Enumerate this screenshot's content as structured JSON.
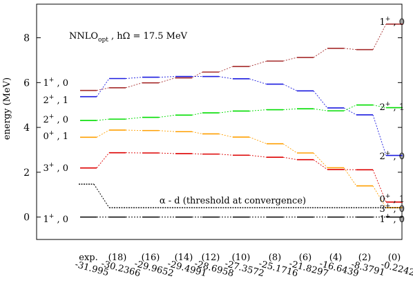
{
  "chart_data": {
    "type": "line",
    "title": "",
    "annotation": {
      "main": "NNLO",
      "sub": "opt",
      "rest": " , hΩ = 17.5 MeV"
    },
    "ylabel": "energy (MeV)",
    "xlabel": "",
    "ylim": [
      -1,
      9.5
    ],
    "yticks": [
      0,
      2,
      4,
      6,
      8
    ],
    "grid": false,
    "columns": [
      {
        "top": "exp.",
        "bottom": "-31.995"
      },
      {
        "top": "(18)",
        "bottom": "-30.2366"
      },
      {
        "top": "(16)",
        "bottom": "-29.9652"
      },
      {
        "top": "(14)",
        "bottom": "-29.4991"
      },
      {
        "top": "(12)",
        "bottom": "-28.6958"
      },
      {
        "top": "(10)",
        "bottom": "-27.3572"
      },
      {
        "top": "(8)",
        "bottom": "-25.1716"
      },
      {
        "top": "(6)",
        "bottom": "-21.8297"
      },
      {
        "top": "(4)",
        "bottom": "-16.6439"
      },
      {
        "top": "(2)",
        "bottom": "-8.3791"
      },
      {
        "top": "(0)",
        "bottom": "-0.2242"
      }
    ],
    "series": [
      {
        "label_left": {
          "j": "1",
          "p": "+",
          "t": "0"
        },
        "label_right": {
          "j": "1",
          "p": "+",
          "t": "0"
        },
        "color": "#a52a2a",
        "values": [
          5.65,
          5.77,
          5.99,
          6.21,
          6.47,
          6.72,
          6.96,
          7.12,
          7.53,
          7.47,
          8.61
        ]
      },
      {
        "label_left": {
          "j": "2",
          "p": "+",
          "t": "1"
        },
        "label_right": {
          "j": "2",
          "p": "+",
          "t": "1"
        },
        "color": "#1a1adf",
        "values": [
          5.37,
          6.18,
          6.24,
          6.27,
          6.27,
          6.17,
          5.93,
          5.63,
          4.87,
          4.56,
          2.75
        ]
      },
      {
        "label_left": {
          "j": "2",
          "p": "+",
          "t": "0"
        },
        "label_right": {
          "j": "2",
          "p": "+",
          "t": "0"
        },
        "color": "#00dd00",
        "values": [
          4.31,
          4.37,
          4.45,
          4.55,
          4.65,
          4.73,
          4.79,
          4.83,
          4.74,
          5.0,
          4.88
        ]
      },
      {
        "label_left": {
          "j": "0",
          "p": "+",
          "t": "1"
        },
        "label_right": {
          "j": "0",
          "p": "+",
          "t": "1"
        },
        "color": "#ff9f00",
        "values": [
          3.56,
          3.88,
          3.86,
          3.81,
          3.71,
          3.57,
          3.27,
          2.86,
          2.2,
          1.39,
          0.42
        ]
      },
      {
        "label_left": {
          "j": "3",
          "p": "+",
          "t": "0"
        },
        "label_right": {
          "j": "3",
          "p": "+",
          "t": "0"
        },
        "color": "#dd0000",
        "values": [
          2.19,
          2.87,
          2.86,
          2.83,
          2.81,
          2.76,
          2.67,
          2.56,
          2.12,
          2.11,
          0.67
        ]
      },
      {
        "label_left": {
          "j": "1",
          "p": "+",
          "t": "0"
        },
        "label_right": {
          "j": "1",
          "p": "+",
          "t": "0"
        },
        "color": "#000000",
        "values": [
          0,
          0,
          0,
          0,
          0,
          0,
          0,
          0,
          0,
          0,
          0
        ]
      }
    ],
    "threshold": {
      "label": "α - d (threshold at convergence)",
      "exp_value": 1.47,
      "conv_value": 0.42
    }
  }
}
